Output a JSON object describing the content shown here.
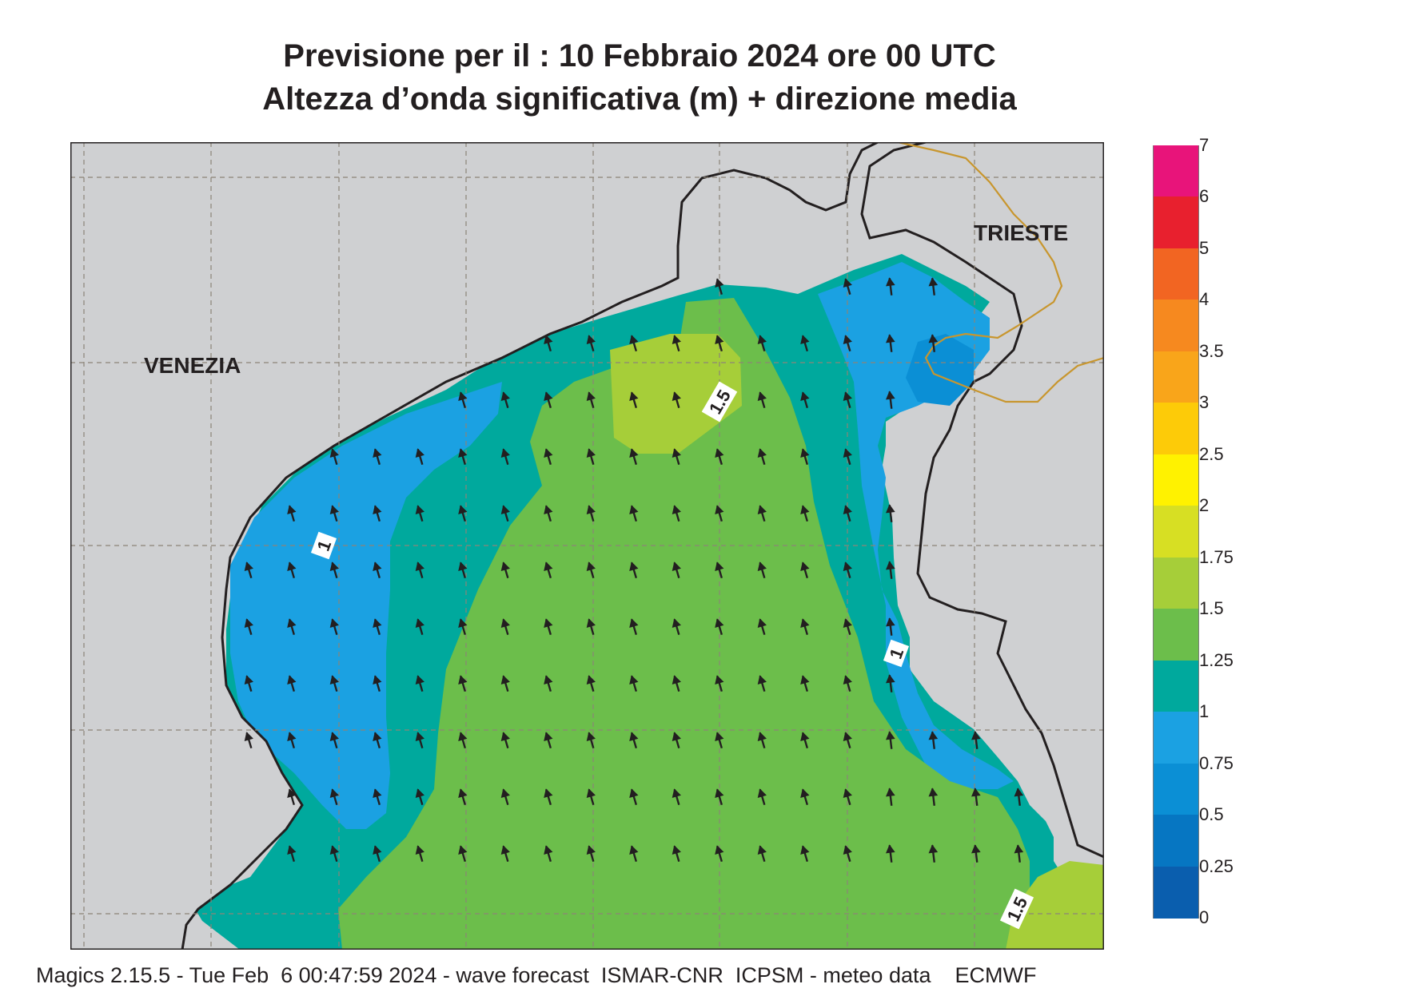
{
  "title": {
    "line1": "Previsione per il  :  10  Febbraio 2024   ore 00 UTC",
    "line2": "Altezza d’onda significativa (m) + direzione media"
  },
  "map": {
    "labels": {
      "venezia": "VENEZIA",
      "trieste": "TRIESTE"
    },
    "contour_labels": [
      "1.5",
      "1",
      "1",
      "1.5"
    ],
    "field": "significant wave height (m)",
    "arrow_direction": "toward north-northwest",
    "colors": {
      "land": "#cfd0d2",
      "coast": "#231f20",
      "border": "#c8962e",
      "grid": "#8c8477"
    }
  },
  "legend": {
    "labels": [
      "7",
      "6",
      "5",
      "4",
      "3.5",
      "3",
      "2.5",
      "2",
      "1.75",
      "1.5",
      "1.25",
      "1",
      "0.75",
      "0.5",
      "0.25",
      "0"
    ],
    "colors": [
      "#e8147a",
      "#e8202e",
      "#f26522",
      "#f6891f",
      "#f9a51a",
      "#fdcb08",
      "#fff200",
      "#d7df23",
      "#a6ce39",
      "#6cbe4b",
      "#00a99d",
      "#1ba1e2",
      "#0b8fd5",
      "#0676c2",
      "#0a5eae"
    ]
  },
  "footer": {
    "text": "Magics 2.15.5 - Tue Feb  6 00:47:59 2024 - wave forecast  ISMAR-CNR  ICPSM - meteo data    ECMWF"
  }
}
